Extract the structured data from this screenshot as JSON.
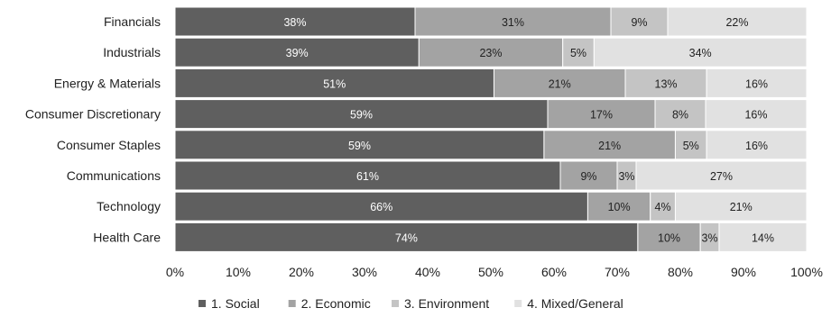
{
  "chart_data": {
    "type": "bar",
    "orientation": "horizontal",
    "stacked": true,
    "normalized": true,
    "title": "",
    "xlabel": "",
    "ylabel": "",
    "categories": [
      "Financials",
      "Industrials",
      "Energy & Materials",
      "Consumer Discretionary",
      "Consumer Staples",
      "Communications",
      "Technology",
      "Health Care"
    ],
    "series": [
      {
        "name": "1. Social",
        "color": "#5f5f5f",
        "values": [
          38,
          39,
          51,
          59,
          59,
          61,
          66,
          74
        ]
      },
      {
        "name": "2. Economic",
        "color": "#a3a3a3",
        "values": [
          31,
          23,
          21,
          17,
          21,
          9,
          10,
          10
        ]
      },
      {
        "name": "3. Environment",
        "color": "#c4c4c4",
        "values": [
          9,
          5,
          13,
          8,
          5,
          3,
          4,
          3
        ]
      },
      {
        "name": "4. Mixed/General",
        "color": "#e1e1e1",
        "values": [
          22,
          34,
          16,
          16,
          16,
          27,
          21,
          14
        ]
      }
    ],
    "xlim": [
      0,
      100
    ],
    "xticks": [
      "0%",
      "10%",
      "20%",
      "30%",
      "40%",
      "50%",
      "60%",
      "70%",
      "80%",
      "90%",
      "100%"
    ],
    "grid": false,
    "legend": {
      "position": "bottom"
    }
  }
}
